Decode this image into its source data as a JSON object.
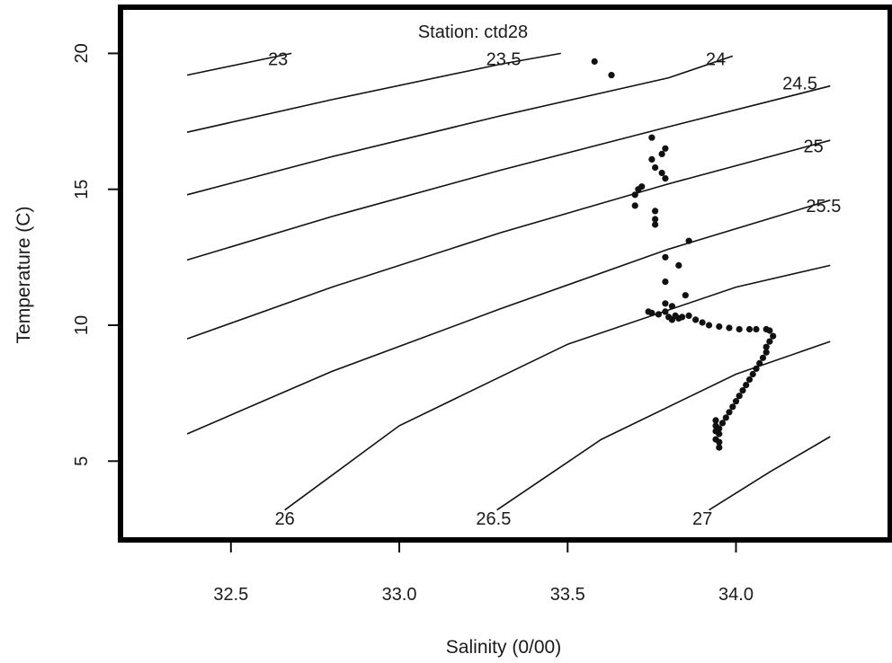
{
  "chart_data": {
    "type": "scatter",
    "title": "Station: ctd28",
    "xlabel": "Salinity (0/00)",
    "ylabel": "Temperature (C)",
    "xlim": [
      32.18,
      34.45
    ],
    "ylim": [
      2.2,
      21.6
    ],
    "x_ticks": [
      {
        "value": 32.5,
        "label": "32.5"
      },
      {
        "value": 33.0,
        "label": "33.0"
      },
      {
        "value": 33.5,
        "label": "33.5"
      },
      {
        "value": 34.0,
        "label": "34.0"
      }
    ],
    "y_ticks": [
      {
        "value": 5,
        "label": "5"
      },
      {
        "value": 10,
        "label": "10"
      },
      {
        "value": 15,
        "label": "15"
      },
      {
        "value": 20,
        "label": "20"
      }
    ],
    "grid": false,
    "isopycnals": [
      {
        "label": "23",
        "points": [
          [
            32.37,
            19.2
          ],
          [
            32.68,
            20.0
          ]
        ],
        "label_at": [
          32.64,
          19.8
        ]
      },
      {
        "label": "23.5",
        "points": [
          [
            32.37,
            17.1
          ],
          [
            32.8,
            18.3
          ],
          [
            33.3,
            19.6
          ],
          [
            33.48,
            20.0
          ]
        ],
        "label_at": [
          33.31,
          19.8
        ]
      },
      {
        "label": "24",
        "points": [
          [
            32.37,
            14.8
          ],
          [
            32.8,
            16.2
          ],
          [
            33.3,
            17.7
          ],
          [
            33.8,
            19.1
          ],
          [
            33.99,
            19.9
          ]
        ],
        "label_at": [
          33.94,
          19.8
        ]
      },
      {
        "label": "24.5",
        "points": [
          [
            32.37,
            12.4
          ],
          [
            32.8,
            14.0
          ],
          [
            33.3,
            15.7
          ],
          [
            33.8,
            17.3
          ],
          [
            34.28,
            18.8
          ]
        ],
        "label_at": [
          34.19,
          18.9
        ]
      },
      {
        "label": "25",
        "points": [
          [
            32.37,
            9.5
          ],
          [
            32.8,
            11.4
          ],
          [
            33.3,
            13.4
          ],
          [
            33.8,
            15.2
          ],
          [
            34.28,
            16.8
          ]
        ],
        "label_at": [
          34.23,
          16.6
        ]
      },
      {
        "label": "25.5",
        "points": [
          [
            32.37,
            6.0
          ],
          [
            32.8,
            8.3
          ],
          [
            33.3,
            10.6
          ],
          [
            33.8,
            12.8
          ],
          [
            34.28,
            14.6
          ]
        ],
        "label_at": [
          34.26,
          14.4
        ]
      },
      {
        "label": "26",
        "points": [
          [
            32.66,
            3.2
          ],
          [
            33.0,
            6.3
          ],
          [
            33.5,
            9.3
          ],
          [
            34.0,
            11.4
          ],
          [
            34.28,
            12.2
          ]
        ],
        "label_at": [
          32.66,
          2.9
        ]
      },
      {
        "label": "26.5",
        "points": [
          [
            33.29,
            3.2
          ],
          [
            33.6,
            5.8
          ],
          [
            34.0,
            8.2
          ],
          [
            34.28,
            9.4
          ]
        ],
        "label_at": [
          33.28,
          2.9
        ]
      },
      {
        "label": "27",
        "points": [
          [
            33.92,
            3.2
          ],
          [
            34.1,
            4.6
          ],
          [
            34.28,
            5.9
          ]
        ],
        "label_at": [
          33.9,
          2.9
        ]
      }
    ],
    "series": [
      {
        "points": [
          [
            33.58,
            19.7
          ],
          [
            33.63,
            19.2
          ],
          [
            33.75,
            16.9
          ],
          [
            33.79,
            16.5
          ],
          [
            33.78,
            16.3
          ],
          [
            33.75,
            16.1
          ],
          [
            33.76,
            15.8
          ],
          [
            33.79,
            15.4
          ],
          [
            33.78,
            15.6
          ],
          [
            33.71,
            15.0
          ],
          [
            33.72,
            15.1
          ],
          [
            33.7,
            14.8
          ],
          [
            33.7,
            14.4
          ],
          [
            33.76,
            14.2
          ],
          [
            33.76,
            13.9
          ],
          [
            33.76,
            13.7
          ],
          [
            33.86,
            13.1
          ],
          [
            33.79,
            12.5
          ],
          [
            33.83,
            12.2
          ],
          [
            33.79,
            11.6
          ],
          [
            33.85,
            11.1
          ],
          [
            33.79,
            10.8
          ],
          [
            33.81,
            10.7
          ],
          [
            33.74,
            10.5
          ],
          [
            33.75,
            10.45
          ],
          [
            33.77,
            10.4
          ],
          [
            33.79,
            10.5
          ],
          [
            33.8,
            10.3
          ],
          [
            33.81,
            10.2
          ],
          [
            33.82,
            10.35
          ],
          [
            33.83,
            10.25
          ],
          [
            33.84,
            10.3
          ],
          [
            33.86,
            10.35
          ],
          [
            33.88,
            10.2
          ],
          [
            33.9,
            10.1
          ],
          [
            33.92,
            10.0
          ],
          [
            33.95,
            9.95
          ],
          [
            33.98,
            9.9
          ],
          [
            34.01,
            9.85
          ],
          [
            34.04,
            9.85
          ],
          [
            34.06,
            9.85
          ],
          [
            34.09,
            9.85
          ],
          [
            34.1,
            9.8
          ],
          [
            34.11,
            9.6
          ],
          [
            34.1,
            9.4
          ],
          [
            34.09,
            9.2
          ],
          [
            34.09,
            9.0
          ],
          [
            34.08,
            8.8
          ],
          [
            34.07,
            8.6
          ],
          [
            34.06,
            8.4
          ],
          [
            34.05,
            8.2
          ],
          [
            34.04,
            8.0
          ],
          [
            34.03,
            7.8
          ],
          [
            34.02,
            7.6
          ],
          [
            34.01,
            7.4
          ],
          [
            34.0,
            7.2
          ],
          [
            33.99,
            7.0
          ],
          [
            33.98,
            6.8
          ],
          [
            33.97,
            6.6
          ],
          [
            33.96,
            6.4
          ],
          [
            33.95,
            6.2
          ],
          [
            33.95,
            6.0
          ],
          [
            33.94,
            5.8
          ],
          [
            33.95,
            5.7
          ],
          [
            33.95,
            5.5
          ],
          [
            33.94,
            6.1
          ],
          [
            33.94,
            6.3
          ],
          [
            33.94,
            6.5
          ]
        ]
      }
    ]
  }
}
